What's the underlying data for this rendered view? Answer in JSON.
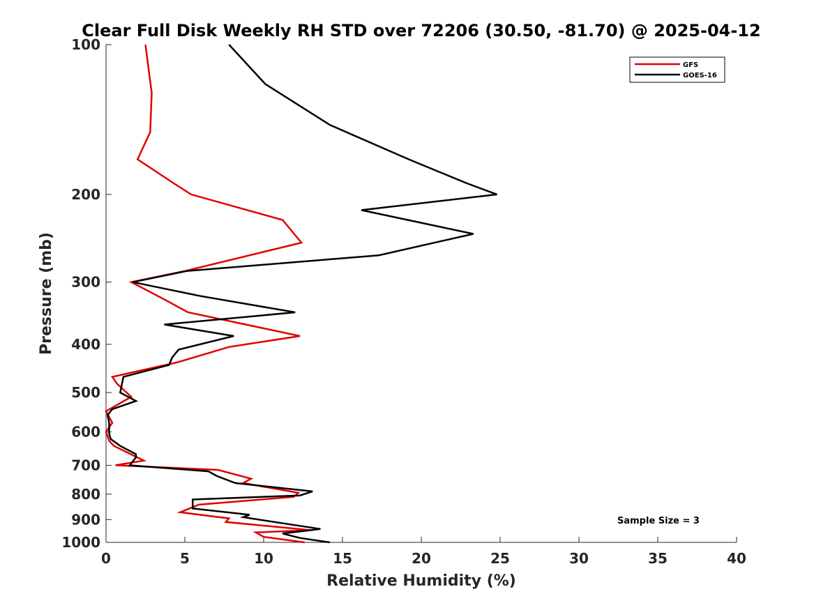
{
  "chart_data": {
    "type": "line",
    "title": "Clear Full Disk Weekly RH STD over 72206 (30.50, -81.70) @ 2025-04-12",
    "xlabel": "Relative Humidity (%)",
    "ylabel": "Pressure (mb)",
    "xlim": [
      0,
      40
    ],
    "ylim": [
      100,
      1000
    ],
    "yscale": "log",
    "y_reversed": true,
    "xticks": [
      0,
      5,
      10,
      15,
      20,
      25,
      30,
      35,
      40
    ],
    "yticks": [
      100,
      200,
      300,
      400,
      500,
      600,
      700,
      800,
      900,
      1000
    ],
    "grid": false,
    "legend_location": "top-right",
    "annotation": "Sample Size = 3",
    "series": [
      {
        "name": "GFS",
        "color": "#e00000",
        "points": [
          [
            2.5,
            100
          ],
          [
            2.9,
            125
          ],
          [
            2.8,
            150
          ],
          [
            2.0,
            170
          ],
          [
            4.3,
            190
          ],
          [
            5.4,
            200
          ],
          [
            11.2,
            225
          ],
          [
            12.4,
            250
          ],
          [
            5.0,
            285
          ],
          [
            1.6,
            300
          ],
          [
            3.7,
            325
          ],
          [
            5.2,
            345
          ],
          [
            12.3,
            385
          ],
          [
            7.8,
            405
          ],
          [
            4.5,
            435
          ],
          [
            0.4,
            465
          ],
          [
            0.7,
            480
          ],
          [
            1.6,
            510
          ],
          [
            0.0,
            545
          ],
          [
            0.4,
            575
          ],
          [
            0.0,
            600
          ],
          [
            0.2,
            625
          ],
          [
            0.5,
            640
          ],
          [
            2.4,
            685
          ],
          [
            0.6,
            700
          ],
          [
            7.1,
            715
          ],
          [
            9.2,
            745
          ],
          [
            8.7,
            760
          ],
          [
            12.2,
            795
          ],
          [
            11.9,
            810
          ],
          [
            5.9,
            840
          ],
          [
            4.7,
            870
          ],
          [
            7.8,
            895
          ],
          [
            7.6,
            910
          ],
          [
            13.0,
            945
          ],
          [
            9.5,
            955
          ],
          [
            10.0,
            975
          ],
          [
            12.6,
            1000
          ]
        ]
      },
      {
        "name": "GOES-16",
        "color": "#000000",
        "points": [
          [
            7.8,
            100
          ],
          [
            10.1,
            120
          ],
          [
            14.2,
            145
          ],
          [
            19.2,
            170
          ],
          [
            22.9,
            190
          ],
          [
            24.8,
            200
          ],
          [
            16.2,
            215
          ],
          [
            23.3,
            240
          ],
          [
            17.3,
            265
          ],
          [
            5.1,
            285
          ],
          [
            1.7,
            300
          ],
          [
            6.0,
            320
          ],
          [
            12.0,
            345
          ],
          [
            3.7,
            365
          ],
          [
            8.1,
            385
          ],
          [
            4.6,
            410
          ],
          [
            4.2,
            425
          ],
          [
            4.0,
            440
          ],
          [
            1.1,
            465
          ],
          [
            0.9,
            500
          ],
          [
            1.9,
            520
          ],
          [
            0.4,
            540
          ],
          [
            0.1,
            555
          ],
          [
            0.2,
            575
          ],
          [
            0.2,
            605
          ],
          [
            0.3,
            620
          ],
          [
            0.9,
            640
          ],
          [
            1.9,
            665
          ],
          [
            1.9,
            675
          ],
          [
            1.5,
            700
          ],
          [
            6.5,
            720
          ],
          [
            7.0,
            735
          ],
          [
            8.2,
            760
          ],
          [
            13.1,
            790
          ],
          [
            12.3,
            805
          ],
          [
            5.5,
            820
          ],
          [
            5.5,
            855
          ],
          [
            9.1,
            880
          ],
          [
            8.7,
            890
          ],
          [
            13.6,
            940
          ],
          [
            11.2,
            960
          ],
          [
            12.3,
            980
          ],
          [
            14.2,
            1000
          ]
        ]
      }
    ]
  }
}
